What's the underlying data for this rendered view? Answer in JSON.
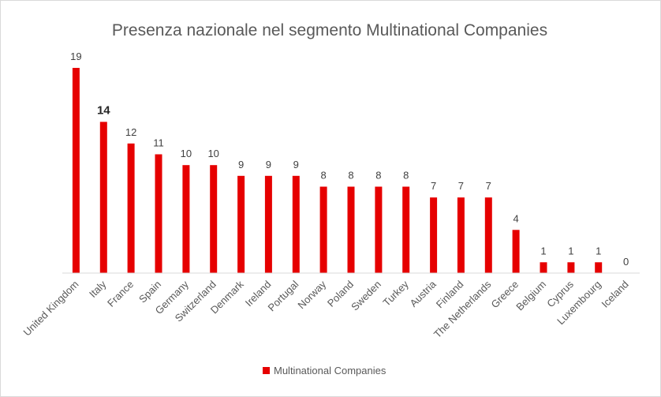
{
  "chart_data": {
    "type": "bar",
    "title": "Presenza nazionale nel segmento Multinational Companies",
    "categories": [
      "United Kingdom",
      "Italy",
      "France",
      "Spain",
      "Germany",
      "Switzerland",
      "Denmark",
      "Ireland",
      "Portugal",
      "Norway",
      "Poland",
      "Sweden",
      "Turkey",
      "Austria",
      "Finland",
      "The Netherlands",
      "Greece",
      "Belgium",
      "Cyprus",
      "Luxembourg",
      "Iceland"
    ],
    "series": [
      {
        "name": "Multinational Companies",
        "values": [
          19,
          14,
          12,
          11,
          10,
          10,
          9,
          9,
          9,
          8,
          8,
          8,
          8,
          7,
          7,
          7,
          4,
          1,
          1,
          1,
          0
        ]
      }
    ],
    "highlighted_category": "Italy",
    "ylim": [
      0,
      19
    ],
    "grid": false,
    "legend": "bottom",
    "colors": {
      "bar": "#e60000",
      "axis": "#d9d9d9"
    }
  }
}
